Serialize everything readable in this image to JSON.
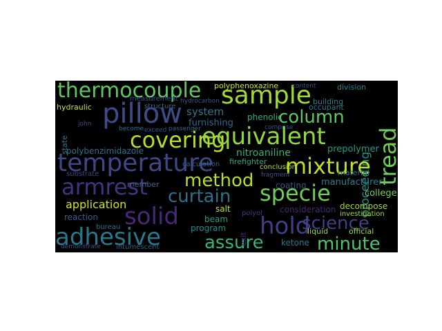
{
  "wordcloud": {
    "background": "#000000",
    "words": [
      {
        "id": "thermocouple",
        "text": "thermocouple",
        "color": "#5ec962"
      },
      {
        "id": "sample",
        "text": "sample",
        "color": "#a2da37"
      },
      {
        "id": "pillow",
        "text": "pillow",
        "color": "#3e4c8a"
      },
      {
        "id": "column",
        "text": "column",
        "color": "#5ec962"
      },
      {
        "id": "tread",
        "text": "tread",
        "color": "#6ece58"
      },
      {
        "id": "proceeding",
        "text": "proceeding",
        "color": "#1f948c"
      },
      {
        "id": "covering",
        "text": "covering",
        "color": "#b5de2b"
      },
      {
        "id": "equivalent",
        "text": "equivalent",
        "color": "#90d743"
      },
      {
        "id": "temperature",
        "text": "temperature",
        "color": "#3f4788"
      },
      {
        "id": "mixture",
        "text": "mixture",
        "color": "#c2df23"
      },
      {
        "id": "armrest",
        "text": "armrest",
        "color": "#46327e"
      },
      {
        "id": "method",
        "text": "method",
        "color": "#b8de29"
      },
      {
        "id": "curtain",
        "text": "curtain",
        "color": "#2c728e"
      },
      {
        "id": "specie",
        "text": "specie",
        "color": "#6ece58"
      },
      {
        "id": "application",
        "text": "application",
        "color": "#d8e219"
      },
      {
        "id": "solid",
        "text": "solid",
        "color": "#482878"
      },
      {
        "id": "hold",
        "text": "hold",
        "color": "#433e85"
      },
      {
        "id": "science",
        "text": "science",
        "color": "#433e85"
      },
      {
        "id": "adhesive",
        "text": "adhesive",
        "color": "#2a788e"
      },
      {
        "id": "assure",
        "text": "assure",
        "color": "#35b779"
      },
      {
        "id": "minute",
        "text": "minute",
        "color": "#52c569"
      },
      {
        "id": "system",
        "text": "system",
        "color": "#2a788e"
      },
      {
        "id": "furnishing",
        "text": "furnishing",
        "color": "#31688e"
      },
      {
        "id": "polybenzimidazole",
        "text": "polybenzimidazole",
        "color": "#2c728e"
      },
      {
        "id": "nitroaniline",
        "text": "nitroaniline",
        "color": "#2db27d"
      },
      {
        "id": "polyphenoxazine",
        "text": "polyphenoxazine",
        "color": "#d8e219"
      },
      {
        "id": "division",
        "text": "division",
        "color": "#26828e"
      },
      {
        "id": "measurement",
        "text": "measurement",
        "color": "#3b528b"
      },
      {
        "id": "hydraulic",
        "text": "hydraulic",
        "color": "#d0e11c"
      },
      {
        "id": "phenolic",
        "text": "phenolic",
        "color": "#29af7f"
      },
      {
        "id": "building",
        "text": "building",
        "color": "#277f8e"
      },
      {
        "id": "occupant",
        "text": "occupant",
        "color": "#2a788e"
      },
      {
        "id": "prepolymer",
        "text": "prepolymer",
        "color": "#1f9e89"
      },
      {
        "id": "firefighter",
        "text": "firefighter",
        "color": "#22a884"
      },
      {
        "id": "conclusion",
        "text": "conclusion",
        "color": "#b5de2b"
      },
      {
        "id": "coating",
        "text": "coating",
        "color": "#3b528b"
      },
      {
        "id": "manufacturer",
        "text": "manufacturer",
        "color": "#277f8e"
      },
      {
        "id": "college",
        "text": "college",
        "color": "#73d056"
      },
      {
        "id": "decompose",
        "text": "decompose",
        "color": "#9fda3a"
      },
      {
        "id": "substrate",
        "text": "substrate",
        "color": "#414487"
      },
      {
        "id": "member",
        "text": "member",
        "color": "#31688e"
      },
      {
        "id": "salt",
        "text": "salt",
        "color": "#c8e020"
      },
      {
        "id": "beam",
        "text": "beam",
        "color": "#1fa188"
      },
      {
        "id": "program",
        "text": "program",
        "color": "#1f948c"
      },
      {
        "id": "reaction",
        "text": "reaction",
        "color": "#355f8d"
      },
      {
        "id": "liquid",
        "text": "liquid",
        "color": "#95d840"
      },
      {
        "id": "official",
        "text": "official",
        "color": "#a5db36"
      },
      {
        "id": "ketone",
        "text": "ketone",
        "color": "#2a788e"
      },
      {
        "id": "investigation",
        "text": "investigation",
        "color": "#a8db34"
      },
      {
        "id": "intumescent",
        "text": "intumescent",
        "color": "#35608d"
      },
      {
        "id": "demonstrate",
        "text": "demonstrate",
        "color": "#3b528b"
      },
      {
        "id": "bureau",
        "text": "bureau",
        "color": "#2d708e"
      },
      {
        "id": "consideration",
        "text": "consideration",
        "color": "#482878"
      },
      {
        "id": "polyol",
        "text": "polyol",
        "color": "#443983"
      },
      {
        "id": "exit",
        "text": "exit",
        "color": "#46307e"
      },
      {
        "id": "state",
        "text": "state",
        "color": "#2a788e"
      },
      {
        "id": "john",
        "text": "john",
        "color": "#3e4a89"
      },
      {
        "id": "material",
        "text": "material",
        "color": "#31688e"
      },
      {
        "id": "content",
        "text": "content",
        "color": "#3b528b"
      },
      {
        "id": "structure",
        "text": "structure",
        "color": "#31688e"
      },
      {
        "id": "hydrocarbon",
        "text": "hydrocarbon",
        "color": "#3b528b"
      },
      {
        "id": "calculation",
        "text": "calculation",
        "color": "#31688e"
      },
      {
        "id": "become",
        "text": "become",
        "color": "#2c728e"
      },
      {
        "id": "exceed",
        "text": "exceed",
        "color": "#3b528b"
      },
      {
        "id": "passenger",
        "text": "passenger",
        "color": "#31688e"
      },
      {
        "id": "comprise",
        "text": "comprise",
        "color": "#3b528b"
      },
      {
        "id": "fragment",
        "text": "fragment",
        "color": "#3b528b"
      }
    ]
  }
}
